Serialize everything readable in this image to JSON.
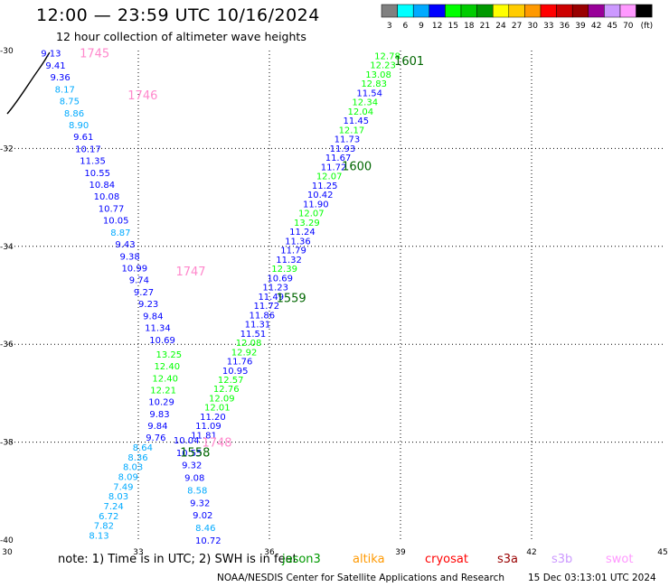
{
  "header": {
    "title": "12:00 — 23:59 UTC 10/16/2024",
    "subtitle": "12 hour collection of altimeter wave heights"
  },
  "legend": {
    "colors": [
      "#808080",
      "#00ffff",
      "#00aaff",
      "#0000ff",
      "#00ff00",
      "#00cc00",
      "#009900",
      "#ffff00",
      "#ffcc00",
      "#ff9900",
      "#ff0000",
      "#cc0000",
      "#990000",
      "#990099",
      "#cc99ff",
      "#ff99ff",
      "#000000"
    ],
    "labels": [
      "3",
      "6",
      "9",
      "12",
      "15",
      "18",
      "21",
      "24",
      "27",
      "30",
      "33",
      "36",
      "39",
      "42",
      "45",
      "70",
      "(ft)"
    ]
  },
  "map": {
    "lat_labels": [
      "-30",
      "-32",
      "-34",
      "-36",
      "-38",
      "-40"
    ],
    "lon_labels": [
      "30",
      "33",
      "36",
      "39",
      "42",
      "45"
    ],
    "west_track": [
      "9.13",
      "9.41",
      "9.36",
      "8.17",
      "8.75",
      "8.86",
      "8.90",
      "9.61",
      "10.17",
      "11.35",
      "10.55",
      "10.84",
      "10.08",
      "10.77",
      "10.05",
      "8.87",
      "9.43",
      "9.38",
      "10.99",
      "9.74",
      "9.27",
      "9.23",
      "9.84",
      "11.34",
      "10.69",
      "13.25",
      "12.40",
      "12.40",
      "12.21",
      "10.29",
      "9.83",
      "9.84",
      "9.76",
      "8.64",
      "8.36",
      "8.03",
      "8.09",
      "7.49",
      "8.03",
      "7.24",
      "6.72",
      "7.82",
      "8.13"
    ],
    "east_track": [
      "12.78",
      "12.23",
      "13.08",
      "12.83",
      "11.54",
      "12.34",
      "12.04",
      "11.45",
      "12.17",
      "11.73",
      "11.93",
      "11.67",
      "11.72",
      "12.07",
      "11.25",
      "10.42",
      "11.90",
      "12.07",
      "13.29",
      "11.24",
      "11.36",
      "11.79",
      "11.32",
      "12.39",
      "10.69",
      "11.23",
      "11.49",
      "11.72",
      "11.86",
      "11.31",
      "11.51",
      "12.08",
      "12.92",
      "11.76",
      "10.95",
      "12.57",
      "12.76",
      "12.09",
      "12.01",
      "11.20",
      "11.09",
      "11.81",
      "10.04",
      "10.55",
      "9.32",
      "9.08",
      "8.58",
      "9.32",
      "9.02",
      "8.46",
      "10.72"
    ],
    "time_labels": [
      {
        "text": "1745",
        "color": "#ff88cc"
      },
      {
        "text": "1746",
        "color": "#ff88cc"
      },
      {
        "text": "1747",
        "color": "#ff88cc"
      },
      {
        "text": "1748",
        "color": "#ff88cc"
      },
      {
        "text": "1601",
        "color": "#006600"
      },
      {
        "text": "1600",
        "color": "#006600"
      },
      {
        "text": "1559",
        "color": "#006600"
      },
      {
        "text": "1558",
        "color": "#006600"
      }
    ]
  },
  "footer": {
    "note": "note: 1) Time is in UTC; 2) SWH is in feet",
    "satellites": [
      {
        "name": "jason3",
        "color": "#009900"
      },
      {
        "name": "altika",
        "color": "#ff9900"
      },
      {
        "name": "cryosat",
        "color": "#ff0000"
      },
      {
        "name": "s3a",
        "color": "#990000"
      },
      {
        "name": "s3b",
        "color": "#cc99ff"
      },
      {
        "name": "swot",
        "color": "#ff99ff"
      }
    ],
    "credit": "NOAA/NESDIS Center for Satellite Applications and Research",
    "timestamp": "15 Dec 03:13:01 UTC 2024"
  }
}
